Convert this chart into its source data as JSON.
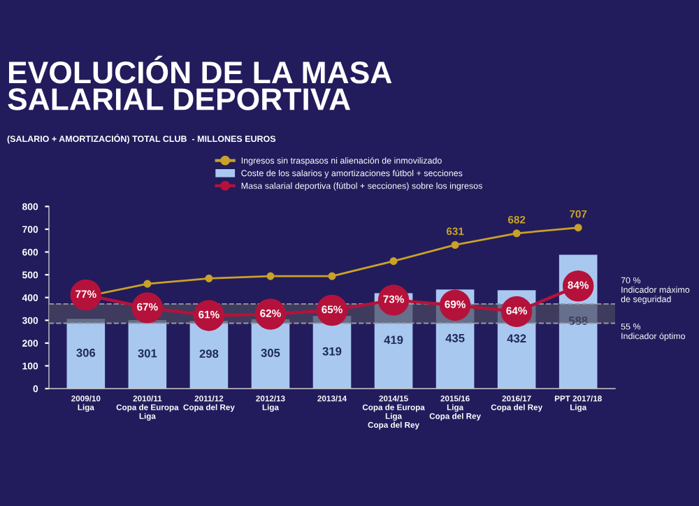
{
  "chart_data": {
    "type": "bar",
    "title": "EVOLUCIÓN DE LA MASA\nSALARIAL DEPORTIVA",
    "subtitle": "(SALARIO + AMORTIZACIÓN) TOTAL CLUB  - MILLONES EUROS",
    "categories": [
      "2009/10\nLiga",
      "2010/11\nCopa de Europa\nLiga",
      "2011/12\nCopa del Rey",
      "2012/13\nLiga",
      "2013/14",
      "2014/15\nCopa de Europa\nLiga\nCopa del Rey",
      "2015/16\nLiga\nCopa del Rey",
      "2016/17\nCopa del Rey",
      "PPT 2017/18\nLiga"
    ],
    "series": [
      {
        "name": "Ingresos sin traspasos ni alienación de inmovilizado",
        "type": "line",
        "color": "#c9a227",
        "marker": "circle",
        "values": [
          405,
          460,
          484,
          494,
          494,
          560,
          631,
          682,
          707
        ],
        "value_labels": [
          null,
          null,
          null,
          null,
          null,
          null,
          "631",
          "682",
          "707"
        ]
      },
      {
        "name": "Coste de los salarios y amortizaciones fútbol + secciones",
        "color": "#a9c8f0",
        "values": [
          306,
          301,
          298,
          305,
          319,
          419,
          435,
          432,
          588
        ],
        "value_labels": [
          "306",
          "301",
          "298",
          "305",
          "319",
          "419",
          "435",
          "432",
          "588"
        ]
      },
      {
        "name": "Masa salarial deportiva (fútbol + secciones) sobre los ingresos",
        "type": "line",
        "axis": "y2",
        "color": "#b5123b",
        "marker": "circle",
        "values": [
          77,
          67,
          61,
          62,
          65,
          73,
          69,
          64,
          84
        ],
        "value_labels": [
          "77%",
          "67%",
          "61%",
          "62%",
          "65%",
          "73%",
          "69%",
          "64%",
          "84%"
        ]
      }
    ],
    "ylim": [
      0,
      800
    ],
    "yticks": [
      0,
      100,
      200,
      300,
      400,
      500,
      600,
      700,
      800
    ],
    "y2lim": [
      4,
      146
    ],
    "tick_labels": "xy",
    "ref_lines": [
      {
        "axis": "y2",
        "value": 70,
        "label": "70 %\nIndicador máximo\nde seguridad",
        "color": "#9a9aa8",
        "line_style": "dashed"
      },
      {
        "axis": "y2",
        "value": 55,
        "label": "55 %\nIndicador óptimo",
        "color": "#9a9aa8",
        "line_style": "dashed"
      }
    ],
    "bands": [
      {
        "axis": "y2",
        "from": 55,
        "to": 70,
        "color": "#4a4860"
      }
    ],
    "legend": "top",
    "grid": false
  }
}
